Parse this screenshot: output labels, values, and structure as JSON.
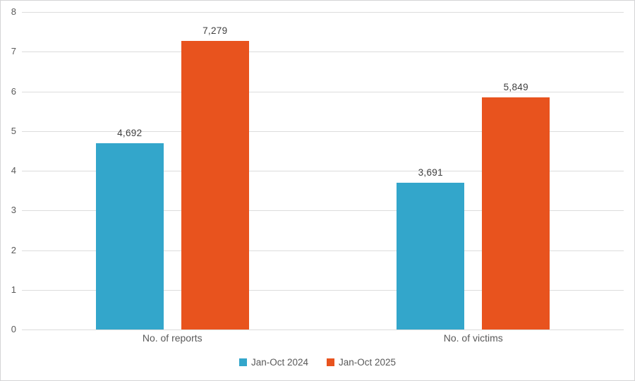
{
  "chart_data": {
    "type": "bar",
    "title": "",
    "xlabel": "",
    "ylabel": "",
    "categories": [
      "No. of reports",
      "No. of victims"
    ],
    "series": [
      {
        "name": "Jan-Oct 2024",
        "color": "#33a6cb",
        "values": [
          4692,
          3691
        ],
        "value_labels": [
          "4,692",
          "3,691"
        ]
      },
      {
        "name": "Jan-Oct 2025",
        "color": "#e8531e",
        "values": [
          7279,
          5849
        ],
        "value_labels": [
          "7,279",
          "5,849"
        ]
      }
    ],
    "ylim": [
      0,
      8000
    ],
    "yticks": [
      {
        "value": 0,
        "label": "0"
      },
      {
        "value": 1000,
        "label": "1"
      },
      {
        "value": 2000,
        "label": "2"
      },
      {
        "value": 3000,
        "label": "3"
      },
      {
        "value": 4000,
        "label": "4"
      },
      {
        "value": 5000,
        "label": "5"
      },
      {
        "value": 6000,
        "label": "6"
      },
      {
        "value": 7000,
        "label": "7"
      },
      {
        "value": 8000,
        "label": "8"
      }
    ],
    "grid": true,
    "legend_position": "bottom"
  },
  "colors": {
    "series_2024": "#33a6cb",
    "series_2025": "#e8531e",
    "gridline": "#dcdcdc",
    "axis_text": "#595959",
    "value_label_text": "#3f3f3f",
    "frame_border": "#d4d4d6",
    "background": "#ffffff"
  }
}
